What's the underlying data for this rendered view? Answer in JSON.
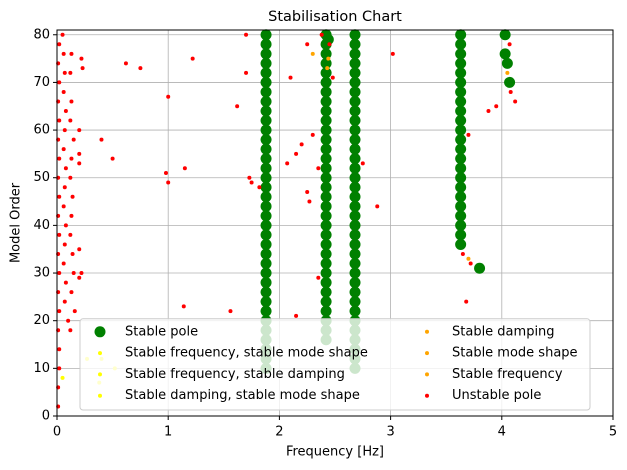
{
  "chart_data": {
    "type": "scatter",
    "title": "Stabilisation Chart",
    "x_label": "Frequency [Hz]",
    "y_label": "Model Order",
    "xlim": [
      0,
      5
    ],
    "ylim": [
      0,
      81
    ],
    "xticks": [
      0,
      1,
      2,
      3,
      4,
      5
    ],
    "yticks": [
      0,
      10,
      20,
      30,
      40,
      50,
      60,
      70,
      80
    ],
    "grid": true,
    "legend": "lower center",
    "series": [
      {
        "name": "Stable pole",
        "color": "#008000",
        "x": [
          1.88,
          1.88,
          1.88,
          1.88,
          1.88,
          1.88,
          1.88,
          1.88,
          1.88,
          1.88,
          1.88,
          1.88,
          1.88,
          1.88,
          1.88,
          1.88,
          1.88,
          1.88,
          1.88,
          1.88,
          1.88,
          1.88,
          1.88,
          1.88,
          1.88,
          1.88,
          1.88,
          1.88,
          1.88,
          1.88,
          1.88,
          1.88,
          1.88,
          1.88,
          1.88,
          1.88,
          2.42,
          2.42,
          2.42,
          2.42,
          2.42,
          2.42,
          2.42,
          2.42,
          2.42,
          2.42,
          2.42,
          2.42,
          2.42,
          2.42,
          2.42,
          2.42,
          2.42,
          2.42,
          2.42,
          2.42,
          2.42,
          2.42,
          2.42,
          2.42,
          2.42,
          2.42,
          2.42,
          2.42,
          2.42,
          2.42,
          2.42,
          2.42,
          2.42,
          2.68,
          2.68,
          2.68,
          2.68,
          2.68,
          2.68,
          2.68,
          2.68,
          2.68,
          2.68,
          2.68,
          2.68,
          2.68,
          2.68,
          2.68,
          2.68,
          2.68,
          2.68,
          2.68,
          2.68,
          2.68,
          2.68,
          2.68,
          2.68,
          2.68,
          2.68,
          2.68,
          2.68,
          2.68,
          2.68,
          2.68,
          2.68,
          2.68,
          2.68,
          2.68,
          2.68,
          3.63,
          3.63,
          3.63,
          3.63,
          3.63,
          3.63,
          3.63,
          3.63,
          3.63,
          3.63,
          3.63,
          3.63,
          3.63,
          3.63,
          3.63,
          3.63,
          3.63,
          3.63,
          3.63,
          3.63,
          3.63,
          3.63,
          3.63,
          2.44,
          3.8,
          4.03,
          4.03,
          4.05,
          4.07
        ],
        "y": [
          10,
          12,
          14,
          16,
          18,
          20,
          22,
          24,
          26,
          28,
          30,
          32,
          34,
          36,
          38,
          40,
          42,
          44,
          46,
          48,
          50,
          52,
          54,
          56,
          58,
          60,
          62,
          64,
          66,
          68,
          70,
          72,
          74,
          76,
          78,
          80,
          16,
          18,
          20,
          22,
          24,
          26,
          28,
          30,
          32,
          34,
          36,
          38,
          40,
          42,
          44,
          46,
          48,
          50,
          52,
          54,
          56,
          58,
          60,
          62,
          64,
          66,
          68,
          70,
          72,
          74,
          76,
          78,
          80,
          10,
          12,
          14,
          16,
          18,
          20,
          22,
          24,
          26,
          28,
          30,
          32,
          34,
          36,
          38,
          40,
          42,
          44,
          46,
          48,
          50,
          52,
          54,
          56,
          58,
          60,
          62,
          64,
          66,
          68,
          70,
          72,
          74,
          76,
          78,
          80,
          36,
          38,
          40,
          42,
          44,
          46,
          48,
          50,
          52,
          54,
          56,
          58,
          60,
          62,
          64,
          66,
          68,
          70,
          72,
          74,
          76,
          78,
          80,
          79,
          31,
          80,
          76,
          74,
          70
        ]
      },
      {
        "name": "Stable frequency, stable mode shape",
        "color": "#ffff00",
        "x": [
          0.27,
          0.4
        ],
        "y": [
          12,
          12
        ]
      },
      {
        "name": "Stable frequency, stable damping",
        "color": "#ffff00",
        "x": [
          0.38,
          0.05
        ],
        "y": [
          7,
          8
        ]
      },
      {
        "name": "Stable damping, stable mode shape",
        "color": "#ffff00",
        "x": [
          0.52
        ],
        "y": [
          10
        ]
      },
      {
        "name": "Stable damping",
        "color": "#ffa500",
        "x": [
          2.3,
          3.7
        ],
        "y": [
          76,
          33
        ]
      },
      {
        "name": "Stable mode shape",
        "color": "#ffa500",
        "x": [
          2.43,
          4.05
        ],
        "y": [
          73,
          72
        ]
      },
      {
        "name": "Stable frequency",
        "color": "#ffa500",
        "x": [
          2.44
        ],
        "y": [
          75
        ]
      },
      {
        "name": "Unstable pole",
        "color": "#ff0000",
        "x": [
          0.01,
          0.01,
          0.02,
          0.02,
          0.01,
          0.02,
          0.01,
          0.02,
          0.01,
          0.02,
          0.01,
          0.02,
          0.01,
          0.02,
          0.01,
          0.02,
          0.01,
          0.02,
          0.01,
          0.02,
          0.05,
          0.06,
          0.07,
          0.06,
          0.08,
          0.07,
          0.06,
          0.08,
          0.07,
          0.06,
          0.08,
          0.07,
          0.06,
          0.08,
          0.07,
          0.1,
          0.12,
          0.13,
          0.12,
          0.13,
          0.12,
          0.15,
          0.13,
          0.12,
          0.14,
          0.13,
          0.12,
          0.14,
          0.15,
          0.13,
          0.16,
          0.2,
          0.2,
          0.2,
          0.22,
          0.2,
          0.2,
          0.23,
          0.22,
          0.4,
          0.5,
          0.62,
          0.75,
          0.98,
          1.0,
          1.0,
          1.14,
          1.15,
          1.22,
          1.56,
          1.62,
          1.7,
          1.7,
          1.73,
          1.75,
          1.82,
          2.1,
          2.15,
          2.07,
          2.15,
          2.2,
          2.25,
          2.27,
          2.3,
          2.35,
          2.35,
          2.25,
          2.38,
          2.45,
          2.48,
          2.75,
          2.88,
          3.02,
          3.65,
          3.68,
          3.7,
          3.88,
          3.95,
          4.08,
          4.12,
          4.07,
          3.72
        ],
        "y": [
          2,
          6,
          10,
          14,
          18,
          22,
          26,
          30,
          34,
          38,
          42,
          46,
          50,
          54,
          58,
          62,
          66,
          70,
          74,
          78,
          80,
          76,
          72,
          68,
          64,
          60,
          56,
          52,
          48,
          44,
          40,
          36,
          32,
          28,
          24,
          20,
          18,
          76,
          72,
          66,
          62,
          58,
          54,
          50,
          46,
          42,
          38,
          34,
          30,
          26,
          22,
          60,
          35,
          29,
          30,
          53,
          55,
          73,
          75,
          58,
          54,
          74,
          73,
          51,
          67,
          49,
          23,
          52,
          75,
          22,
          65,
          80,
          72,
          50,
          49,
          48,
          71,
          21,
          53,
          55,
          57,
          47,
          45,
          59,
          29,
          52,
          78,
          80,
          78,
          71,
          53,
          44,
          76,
          34,
          24,
          59,
          64,
          65,
          68,
          66,
          78,
          32
        ]
      }
    ]
  }
}
